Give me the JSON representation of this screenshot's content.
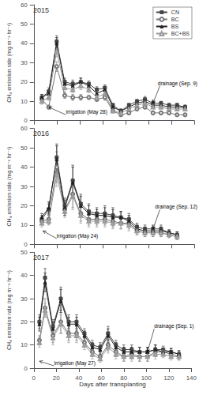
{
  "chart_data": [
    {
      "type": "line",
      "title": "2015",
      "ylabel": "CH₄ emission rate (mg m⁻² hr⁻¹)",
      "x": [
        7,
        13,
        20,
        27,
        34,
        41,
        48,
        55,
        62,
        69,
        76,
        83,
        90,
        97,
        104,
        111,
        118,
        125,
        132
      ],
      "series": [
        {
          "name": "CN",
          "color": "#444444",
          "marker": "square",
          "line_style": "solid",
          "values": [
            12,
            15,
            41,
            20,
            19,
            20,
            19,
            16,
            17,
            8,
            5,
            8,
            10,
            11,
            9,
            9,
            8,
            8,
            7
          ],
          "yerr": [
            1.5,
            2,
            3,
            2,
            2,
            2,
            1.5,
            1.5,
            1.5,
            1,
            1,
            1,
            1,
            1.5,
            1.5,
            1,
            1,
            1,
            1
          ]
        },
        {
          "name": "BC",
          "color": "#777777",
          "marker": "open-circle",
          "line_style": "solid",
          "values": [
            11,
            7,
            28,
            13,
            12,
            12,
            12,
            11,
            12,
            5,
            3,
            4,
            6,
            7,
            4,
            4,
            4,
            3,
            3
          ],
          "yerr": [
            1.5,
            1,
            2.5,
            1.5,
            1.5,
            1.5,
            1,
            1,
            1.5,
            0.8,
            0.8,
            1,
            1,
            1,
            1,
            1,
            1,
            0.8,
            0.8
          ]
        },
        {
          "name": "BS",
          "color": "#222222",
          "marker": "triangle",
          "line_style": "solid",
          "values": [
            12,
            14,
            40,
            19,
            18,
            20,
            18,
            14,
            16,
            7,
            5,
            7,
            9,
            10,
            8,
            8,
            7,
            7,
            7
          ],
          "yerr": [
            1.5,
            2,
            3,
            2,
            2,
            2,
            1.5,
            1.5,
            1.5,
            1,
            1,
            1,
            1,
            1.5,
            1,
            1,
            1,
            1,
            1
          ]
        },
        {
          "name": "BC+BS",
          "color": "#999999",
          "marker": "open-triangle",
          "line_style": "solid",
          "values": [
            10,
            12,
            36,
            17,
            16,
            18,
            16,
            12,
            14,
            5,
            4,
            6,
            8,
            9,
            7,
            7,
            6,
            6,
            6
          ],
          "yerr": [
            1.5,
            1.5,
            3,
            2,
            1.5,
            2,
            1.5,
            1.5,
            1.5,
            0.8,
            0.8,
            1,
            1,
            1.5,
            1,
            1,
            1,
            1,
            1
          ]
        }
      ],
      "xlim": [
        0,
        140
      ],
      "xticks": [
        0,
        20,
        40,
        60,
        80,
        100,
        120,
        140
      ],
      "ylim": [
        0,
        60
      ],
      "yticks": [
        0,
        10,
        20,
        30,
        40,
        50,
        60
      ],
      "grid": false,
      "legend": "upper right",
      "tick_labels": "y",
      "annotations": [
        {
          "text": "irrigation (May 28)",
          "x": 28,
          "y": 3,
          "arrow_x": 13,
          "arrow_y": 7
        },
        {
          "text": "drainage (Sep. 9)",
          "x": 110,
          "y": 18,
          "arrow_x": 104,
          "arrow_y": 9
        }
      ]
    },
    {
      "type": "line",
      "title": "2016",
      "ylabel": "CH₄ emission rate (mg m⁻² hr⁻¹)",
      "x": [
        7,
        13,
        20,
        27,
        34,
        41,
        48,
        55,
        62,
        69,
        76,
        83,
        90,
        97,
        104,
        111,
        118,
        125
      ],
      "series": [
        {
          "name": "CN",
          "color": "#444444",
          "marker": "square",
          "line_style": "solid",
          "values": [
            13,
            18,
            45,
            20,
            33,
            21,
            17,
            16,
            16,
            15,
            14,
            13,
            9,
            8,
            8,
            8,
            6,
            5
          ],
          "yerr": [
            2,
            3,
            7,
            4,
            8,
            5,
            4,
            3,
            4,
            4,
            3,
            3,
            2,
            2,
            2,
            2,
            1.5,
            1.5
          ]
        },
        {
          "name": "BC",
          "color": "#777777",
          "marker": "open-circle",
          "line_style": "solid",
          "values": [
            12,
            13,
            40,
            18,
            26,
            16,
            13,
            13,
            13,
            12,
            11,
            11,
            7,
            6,
            6,
            6,
            5,
            4
          ],
          "yerr": [
            2,
            2.5,
            8,
            3,
            7,
            4,
            3,
            3,
            3,
            3,
            3,
            3,
            2,
            2,
            2,
            2,
            1.5,
            1.5
          ]
        },
        {
          "name": "BS",
          "color": "#222222",
          "marker": "triangle",
          "line_style": "solid",
          "values": [
            14,
            19,
            44,
            19,
            32,
            20,
            16,
            15,
            15,
            14,
            14,
            12,
            8,
            7,
            7,
            7,
            6,
            5
          ],
          "yerr": [
            2,
            3,
            7,
            4,
            8,
            5,
            4,
            3,
            4,
            4,
            3,
            3,
            2,
            2,
            2,
            2,
            1.5,
            1.5
          ]
        },
        {
          "name": "BC+BS",
          "color": "#999999",
          "marker": "open-triangle",
          "line_style": "solid",
          "values": [
            11,
            12,
            36,
            17,
            25,
            15,
            12,
            12,
            12,
            11,
            11,
            10,
            7,
            6,
            6,
            6,
            5,
            4
          ],
          "yerr": [
            2,
            2,
            6,
            3,
            7,
            4,
            3,
            3,
            3,
            3,
            3,
            3,
            2,
            2,
            2,
            2,
            1.5,
            1.5
          ]
        }
      ],
      "xlim": [
        0,
        140
      ],
      "xticks": [
        0,
        20,
        40,
        60,
        80,
        100,
        120,
        140
      ],
      "ylim": [
        0,
        60
      ],
      "yticks": [
        0,
        10,
        20,
        30,
        40,
        50,
        60
      ],
      "grid": false,
      "tick_labels": "y",
      "annotations": [
        {
          "text": "irrigation (May 24)",
          "x": 20,
          "y": 3,
          "arrow_x": 8,
          "arrow_y": 7
        },
        {
          "text": "drainage (Sep. 12)",
          "x": 110,
          "y": 18,
          "arrow_x": 104,
          "arrow_y": 8
        }
      ]
    },
    {
      "type": "line",
      "title": "2017",
      "ylabel": "CH₄ emission rate (mg m⁻² hr⁻¹)",
      "xlabel": "Days after transplanting",
      "x": [
        5,
        10,
        17,
        24,
        31,
        38,
        45,
        52,
        59,
        66,
        73,
        80,
        87,
        94,
        101,
        108,
        115,
        122,
        129
      ],
      "series": [
        {
          "name": "CN",
          "color": "#444444",
          "marker": "square",
          "line_style": "solid",
          "values": [
            20,
            39,
            18,
            30,
            20,
            20,
            15,
            10,
            9,
            15,
            10,
            8,
            8,
            7,
            7,
            8,
            8,
            7,
            6
          ],
          "yerr": [
            3,
            4,
            3,
            5,
            3,
            3,
            2,
            2,
            2,
            3,
            2,
            2,
            2,
            2,
            2,
            2,
            1.5,
            1.5,
            1.5
          ]
        },
        {
          "name": "BC",
          "color": "#777777",
          "marker": "open-circle",
          "line_style": "solid",
          "values": [
            12,
            26,
            14,
            20,
            15,
            15,
            11,
            7,
            5,
            10,
            7,
            5,
            6,
            5,
            5,
            7,
            7,
            6,
            5
          ],
          "yerr": [
            2,
            4,
            3,
            5,
            3,
            3,
            2,
            2,
            1.5,
            2.5,
            2,
            2,
            2,
            2,
            2,
            2,
            1.5,
            1.5,
            1.5
          ]
        },
        {
          "name": "BS",
          "color": "#222222",
          "marker": "triangle",
          "line_style": "solid",
          "values": [
            19,
            37,
            17,
            29,
            19,
            19,
            14,
            9,
            8,
            14,
            9,
            7,
            7,
            7,
            7,
            8,
            7,
            7,
            6
          ],
          "yerr": [
            3,
            4,
            3,
            5,
            3,
            3,
            2,
            2,
            2,
            3,
            2,
            2,
            2,
            2,
            2,
            2,
            1.5,
            1.5,
            1.5
          ]
        },
        {
          "name": "BC+BS",
          "color": "#999999",
          "marker": "open-triangle",
          "line_style": "solid",
          "values": [
            11,
            25,
            13,
            19,
            14,
            14,
            10,
            6,
            4,
            9,
            6,
            5,
            5,
            5,
            5,
            6,
            6,
            5,
            5
          ],
          "yerr": [
            2,
            3,
            3,
            4,
            3,
            3,
            2,
            2,
            1.5,
            2.5,
            2,
            2,
            2,
            2,
            2,
            2,
            1.5,
            1.5,
            1.5
          ]
        }
      ],
      "xlim": [
        0,
        140
      ],
      "xticks": [
        0,
        20,
        40,
        60,
        80,
        100,
        120,
        140
      ],
      "ylim": [
        0,
        50
      ],
      "yticks": [
        0,
        10,
        20,
        30,
        40,
        50
      ],
      "grid": false,
      "annotations": [
        {
          "text": "irrigation (May 27)",
          "x": 18,
          "y": 1,
          "arrow_x": 5,
          "arrow_y": 3
        },
        {
          "text": "drainage (Sep. 1)",
          "x": 107,
          "y": 17,
          "arrow_x": 101,
          "arrow_y": 7
        }
      ]
    }
  ]
}
